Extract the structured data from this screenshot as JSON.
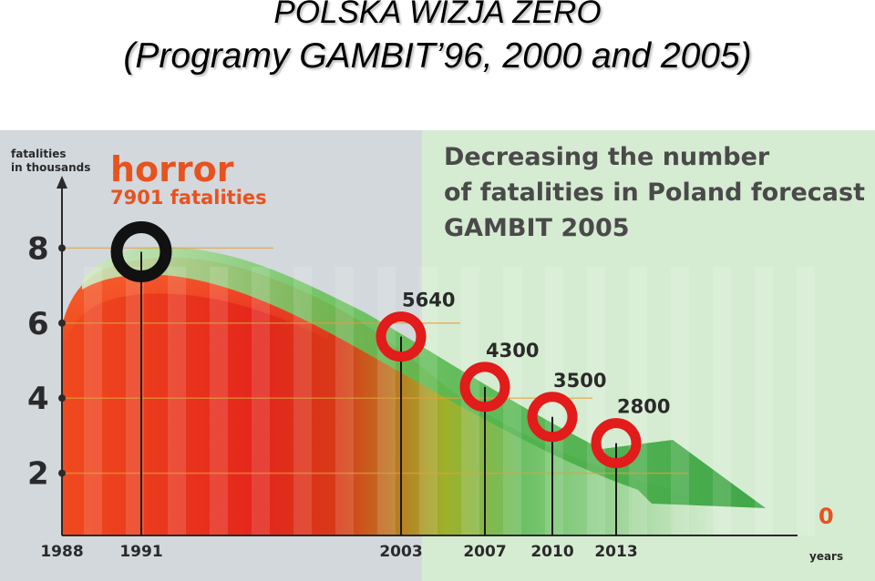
{
  "slide": {
    "title_line1": "POLSKA WIZJA ZERO",
    "title_line2": "(Programy GAMBIT’96, 2000 and 2005)"
  },
  "chart_data": {
    "type": "area",
    "title_lines": [
      "Decreasing the number",
      "of fatalities in Poland forecast",
      "GAMBIT 2005"
    ],
    "ylabel_lines": [
      "fatalities",
      "in thousands"
    ],
    "xlabel": "years",
    "ylim": [
      0,
      9
    ],
    "y_ticks": [
      2,
      4,
      6,
      8
    ],
    "x_ticks": [
      "1988",
      "1991",
      "2003",
      "2007",
      "2010",
      "2013"
    ],
    "annotation": {
      "title": "horror",
      "subtitle": "7901 fatalities"
    },
    "points": [
      {
        "x": 1991,
        "y": 7.901,
        "label": "",
        "marker": "black-ring"
      },
      {
        "x": 2003,
        "y": 5.64,
        "label": "5640",
        "marker": "red-ring"
      },
      {
        "x": 2007,
        "y": 4.3,
        "label": "4300",
        "marker": "red-ring"
      },
      {
        "x": 2010,
        "y": 3.5,
        "label": "3500",
        "marker": "red-ring"
      },
      {
        "x": 2013,
        "y": 2.8,
        "label": "2800",
        "marker": "red-ring"
      }
    ],
    "end_label": "0",
    "colors": {
      "past": "#e0301e",
      "forecast_arrow": "#3fae3f",
      "forecast_panel": "#d6ecd2",
      "background": "#d3d8dc",
      "ring": "#e21b1b"
    }
  }
}
